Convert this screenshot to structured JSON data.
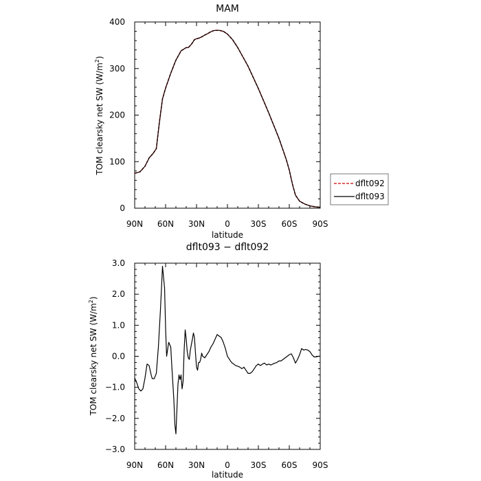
{
  "chart_data": [
    {
      "type": "line",
      "title": "MAM",
      "xlabel": "latitude",
      "ylabel": "TOM clearsky net SW (W/m²)",
      "ylabel_main": "TOM clearsky net SW (W/m",
      "ylabel_sup": "2",
      "ylabel_end": ")",
      "xlim": [
        90,
        -90
      ],
      "ylim": [
        0,
        400
      ],
      "x_ticks": [
        90,
        60,
        30,
        0,
        -30,
        -60,
        -90
      ],
      "x_tick_labels": [
        "90N",
        "60N",
        "30N",
        "0",
        "30S",
        "60S",
        "90S"
      ],
      "y_ticks": [
        0,
        100,
        200,
        300,
        400
      ],
      "y_tick_labels": [
        "0",
        "100",
        "200",
        "300",
        "400"
      ],
      "grid": false,
      "legend_position": "right",
      "series": [
        {
          "name": "dflt092",
          "color": "#cc0000",
          "dash": "dashed",
          "x": [
            90,
            85,
            80,
            76,
            72,
            69,
            66,
            63,
            60,
            55,
            50,
            45,
            40,
            38,
            35,
            32,
            30,
            28,
            25,
            22,
            20,
            17,
            14,
            12,
            8,
            4,
            0,
            -5,
            -10,
            -20,
            -30,
            -40,
            -50,
            -57,
            -60,
            -63,
            -66,
            -70,
            -75,
            -80,
            -85,
            -90
          ],
          "values": [
            75,
            78,
            90,
            108,
            118,
            128,
            185,
            235,
            258,
            290,
            318,
            338,
            345,
            345,
            352,
            362,
            364,
            365,
            368,
            372,
            374,
            378,
            381,
            382,
            382,
            380,
            374,
            362,
            345,
            305,
            257,
            205,
            150,
            105,
            82,
            52,
            28,
            15,
            9,
            5,
            3,
            2
          ]
        },
        {
          "name": "dflt093",
          "color": "#000000",
          "dash": "solid",
          "x": [
            90,
            85,
            80,
            76,
            72,
            69,
            66,
            63,
            60,
            55,
            50,
            45,
            40,
            38,
            35,
            32,
            30,
            28,
            25,
            22,
            20,
            17,
            14,
            12,
            8,
            4,
            0,
            -5,
            -10,
            -20,
            -30,
            -40,
            -50,
            -57,
            -60,
            -63,
            -66,
            -70,
            -75,
            -80,
            -85,
            -90
          ],
          "values": [
            75,
            78,
            90,
            108,
            118,
            128,
            185,
            235,
            258,
            290,
            318,
            338,
            345,
            345,
            352,
            362,
            364,
            365,
            368,
            372,
            374,
            378,
            381,
            382,
            382,
            380,
            374,
            362,
            345,
            305,
            257,
            205,
            150,
            105,
            82,
            52,
            28,
            15,
            9,
            5,
            3,
            2
          ]
        }
      ]
    },
    {
      "type": "line",
      "title": "dflt093 − dflt092",
      "xlabel": "latitude",
      "ylabel": "TOM clearsky net SW (W/m²)",
      "ylabel_main": "TOM clearsky net SW (W/m",
      "ylabel_sup": "2",
      "ylabel_end": ")",
      "xlim": [
        90,
        -90
      ],
      "ylim": [
        -3.0,
        3.0
      ],
      "x_ticks": [
        90,
        60,
        30,
        0,
        -30,
        -60,
        -90
      ],
      "x_tick_labels": [
        "90N",
        "60N",
        "30N",
        "0",
        "30S",
        "60S",
        "90S"
      ],
      "y_ticks": [
        -3,
        -2,
        -1,
        0,
        1,
        2,
        3
      ],
      "y_tick_labels": [
        "−3.0",
        "−2.0",
        "−1.0",
        "0.0",
        "1.0",
        "2.0",
        "3.0"
      ],
      "grid": false,
      "series": [
        {
          "color": "#000000",
          "dash": "solid",
          "x": [
            90,
            88,
            86,
            84,
            82,
            80,
            78,
            76,
            74,
            73,
            71,
            69,
            67,
            65,
            63,
            61,
            60,
            59,
            57,
            55,
            54,
            52,
            51,
            50,
            49,
            48,
            47,
            46,
            45,
            44,
            43,
            42,
            41,
            40,
            39,
            38,
            37,
            36,
            34,
            33,
            32,
            31,
            30,
            29,
            28,
            27,
            26,
            25,
            24,
            22,
            20,
            18,
            16,
            14,
            12,
            10,
            8,
            6,
            4,
            2,
            0,
            -2,
            -4,
            -6,
            -8,
            -10,
            -12,
            -14,
            -16,
            -18,
            -20,
            -22,
            -24,
            -26,
            -28,
            -30,
            -32,
            -34,
            -36,
            -38,
            -40,
            -42,
            -44,
            -46,
            -48,
            -50,
            -52,
            -54,
            -56,
            -58,
            -60,
            -62,
            -64,
            -66,
            -68,
            -70,
            -72,
            -74,
            -76,
            -78,
            -80,
            -82,
            -84,
            -86,
            -88,
            -90
          ],
          "values": [
            -0.7,
            -0.85,
            -1.05,
            -1.12,
            -1.05,
            -0.7,
            -0.25,
            -0.3,
            -0.6,
            -0.72,
            -0.72,
            -0.55,
            0.3,
            1.5,
            2.9,
            2.2,
            0.9,
            0.0,
            0.45,
            0.3,
            -0.3,
            -1.4,
            -2.2,
            -2.5,
            -1.7,
            -0.9,
            -0.6,
            -0.75,
            -0.6,
            -1.05,
            -0.8,
            0.2,
            0.85,
            0.55,
            0.15,
            -0.05,
            -0.1,
            0.2,
            0.55,
            0.75,
            0.6,
            0.1,
            -0.35,
            -0.45,
            -0.2,
            -0.2,
            -0.1,
            0.1,
            0.0,
            -0.05,
            0.05,
            0.15,
            0.3,
            0.4,
            0.55,
            0.7,
            0.65,
            0.6,
            0.45,
            0.25,
            0.0,
            -0.1,
            -0.2,
            -0.25,
            -0.3,
            -0.32,
            -0.35,
            -0.4,
            -0.35,
            -0.45,
            -0.55,
            -0.55,
            -0.5,
            -0.4,
            -0.3,
            -0.25,
            -0.3,
            -0.25,
            -0.22,
            -0.28,
            -0.25,
            -0.28,
            -0.25,
            -0.22,
            -0.2,
            -0.15,
            -0.15,
            -0.1,
            -0.05,
            0.0,
            0.05,
            0.08,
            -0.05,
            -0.22,
            -0.1,
            0.05,
            0.25,
            0.2,
            0.22,
            0.2,
            0.15,
            0.05,
            -0.02,
            -0.02,
            0.0,
            0.0
          ]
        }
      ]
    }
  ]
}
